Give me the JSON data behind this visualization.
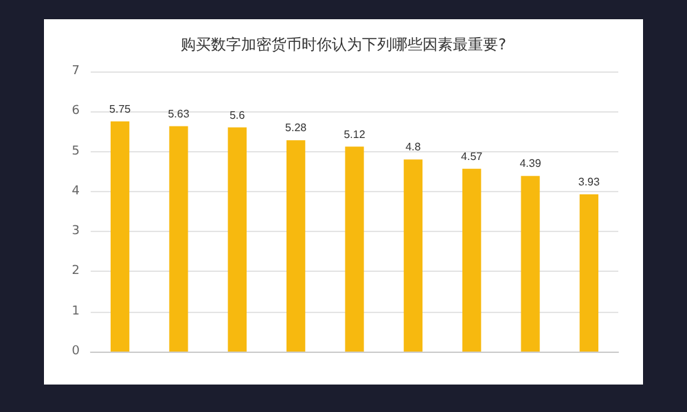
{
  "chart_data": {
    "type": "bar",
    "title": "购买数字加密货币时你认为下列哪些因素最重要?",
    "categories": [
      null,
      null,
      null,
      null,
      null,
      null,
      null,
      null,
      null
    ],
    "values": [
      5.75,
      5.63,
      5.6,
      5.28,
      5.12,
      4.8,
      4.57,
      4.39,
      3.93
    ],
    "color": "#f7b90f",
    "ylim": [
      0,
      7
    ],
    "yticks": [
      0,
      1,
      2,
      3,
      4,
      5,
      6,
      7
    ],
    "grid": "y",
    "data_labels": true
  }
}
